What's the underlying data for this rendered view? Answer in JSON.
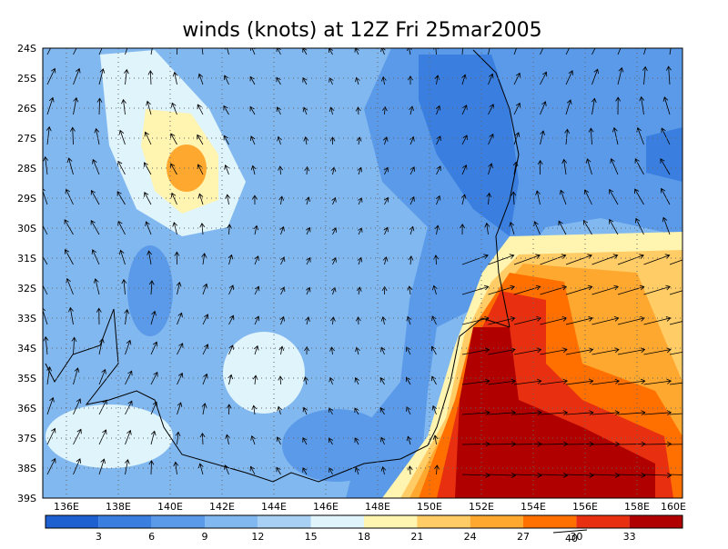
{
  "title": "winds (knots) at 12Z Fri 25mar2005",
  "lat_labels": [
    "24S",
    "25S",
    "26S",
    "27S",
    "28S",
    "29S",
    "30S",
    "31S",
    "32S",
    "33S",
    "34S",
    "35S",
    "36S",
    "37S",
    "38S",
    "39S"
  ],
  "lon_labels": [
    "136E",
    "138E",
    "140E",
    "142E",
    "144E",
    "146E",
    "148E",
    "150E",
    "152E",
    "154E",
    "156E",
    "158E",
    "160E"
  ],
  "colorbar": {
    "labels": [
      "3",
      "6",
      "9",
      "12",
      "15",
      "18",
      "21",
      "24",
      "27",
      "30",
      "33"
    ],
    "colors": [
      "#1e60d0",
      "#3a7fe0",
      "#5a9ae8",
      "#82b8f0",
      "#a8d0f5",
      "#e0f4fc",
      "#fff4b0",
      "#ffcc66",
      "#ffa830",
      "#ff7000",
      "#e83010",
      "#b00000"
    ]
  },
  "vector_scale_label": "40"
}
